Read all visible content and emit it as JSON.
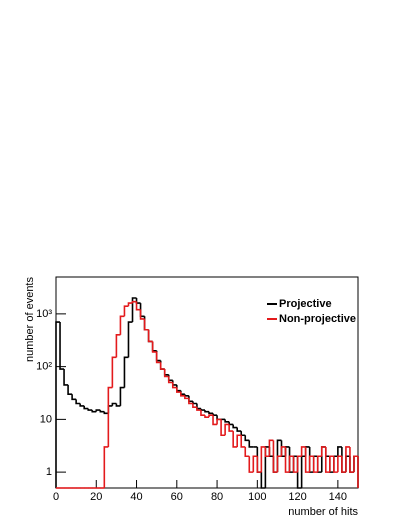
{
  "chart_data": {
    "type": "histogram",
    "xlabel": "number of hits",
    "ylabel": "number of events",
    "bins": [
      0,
      2,
      4,
      6,
      8,
      10,
      12,
      14,
      16,
      18,
      20,
      22,
      24,
      26,
      28,
      30,
      32,
      34,
      36,
      38,
      40,
      42,
      44,
      46,
      48,
      50,
      52,
      54,
      56,
      58,
      60,
      62,
      64,
      66,
      68,
      70,
      72,
      74,
      76,
      78,
      80,
      82,
      84,
      86,
      88,
      90,
      92,
      94,
      96,
      98,
      100,
      102,
      104,
      106,
      108,
      110,
      112,
      114,
      116,
      118,
      120,
      122,
      124,
      126,
      128,
      130,
      132,
      134,
      136,
      138,
      140,
      142,
      144,
      146,
      148,
      150
    ],
    "series": [
      {
        "name": "Projective",
        "color": "#000000",
        "values": [
          700,
          90,
          45,
          30,
          24,
          20,
          18,
          16,
          15,
          14,
          15,
          14,
          13,
          18,
          20,
          18,
          40,
          150,
          700,
          2000,
          1600,
          900,
          500,
          300,
          200,
          130,
          90,
          70,
          55,
          45,
          35,
          30,
          28,
          22,
          20,
          16,
          15,
          14,
          13,
          12,
          10,
          10,
          9,
          8,
          7,
          6,
          5,
          4,
          3,
          3,
          1,
          0,
          3,
          2,
          1,
          4,
          2,
          3,
          1,
          2,
          0,
          2,
          3,
          1,
          2,
          1,
          3,
          2,
          1,
          2,
          3,
          1,
          2,
          1,
          2
        ]
      },
      {
        "name": "Non-projective",
        "color": "#e31a1c",
        "values": [
          0,
          0,
          0,
          0,
          0,
          0,
          0,
          0,
          0,
          0,
          0,
          0,
          3,
          40,
          150,
          400,
          900,
          1400,
          1600,
          1700,
          1200,
          800,
          500,
          300,
          190,
          120,
          90,
          65,
          50,
          40,
          33,
          28,
          25,
          20,
          17,
          15,
          12,
          11,
          12,
          8,
          10,
          5,
          8,
          6,
          3,
          5,
          3,
          2,
          1,
          2,
          1,
          3,
          2,
          4,
          1,
          2,
          3,
          1,
          2,
          1,
          2,
          3,
          1,
          2,
          1,
          2,
          3,
          1,
          2,
          1,
          2,
          1,
          3,
          1,
          2
        ]
      }
    ],
    "xlim": [
      0,
      150
    ],
    "xticks": [
      0,
      20,
      40,
      60,
      80,
      100,
      120,
      140
    ],
    "ylim": [
      0.5,
      5000
    ],
    "log_y": true,
    "yticks": [
      1,
      10,
      {
        "value": 100,
        "label": "10²"
      },
      {
        "value": 1000,
        "label": "10³"
      }
    ],
    "legend": "upper right"
  }
}
